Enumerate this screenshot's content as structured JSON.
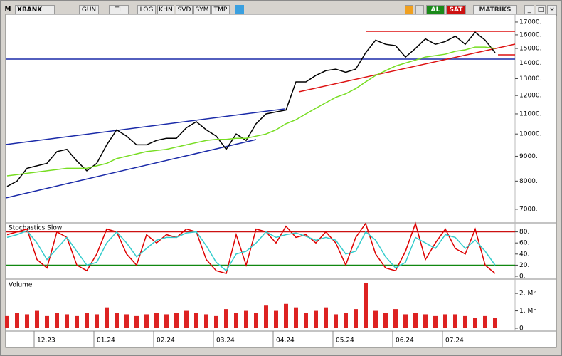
{
  "toolbar": {
    "logo": "M",
    "symbol": "XBANK",
    "buttons": [
      "GUN",
      "TL",
      "LOG",
      "KHN",
      "SVD",
      "SYM",
      "TMP"
    ],
    "buy": "AL",
    "sell": "SAT",
    "brand": "MATRIKS"
  },
  "chart_data": [
    {
      "type": "line",
      "log": true,
      "ylim": [
        6630,
        17760
      ],
      "yticks": [
        {
          "value": 7000,
          "label": "7000."
        },
        {
          "value": 8000,
          "label": "8000."
        },
        {
          "value": 9000,
          "label": "9000."
        },
        {
          "value": 10000,
          "label": "10000."
        },
        {
          "value": 11000,
          "label": "11000."
        },
        {
          "value": 12000,
          "label": "12000."
        },
        {
          "value": 13000,
          "label": "13000."
        },
        {
          "value": 14000,
          "label": "14000."
        },
        {
          "value": 15000,
          "label": "15000."
        },
        {
          "value": 16000,
          "label": "16000."
        },
        {
          "value": 17000,
          "label": "17000."
        }
      ],
      "series": [
        {
          "color": "#000000",
          "values": [
            7800,
            8000,
            8500,
            8600,
            8700,
            9200,
            9300,
            8800,
            8400,
            8700,
            9500,
            10200,
            9900,
            9500,
            9500,
            9700,
            9800,
            9800,
            10300,
            10600,
            10200,
            9900,
            9300,
            10000,
            9700,
            10500,
            11000,
            11100,
            11200,
            12800,
            12800,
            13200,
            13500,
            13600,
            13400,
            13600,
            14700,
            15600,
            15300,
            15200,
            14400,
            15000,
            15700,
            15300,
            15500,
            15900,
            15300,
            16200,
            15600,
            14700
          ]
        },
        {
          "color": "#77dd22",
          "values": [
            8200,
            8250,
            8300,
            8350,
            8400,
            8450,
            8500,
            8500,
            8500,
            8600,
            8700,
            8900,
            9000,
            9100,
            9200,
            9250,
            9300,
            9400,
            9500,
            9600,
            9700,
            9750,
            9750,
            9800,
            9800,
            9900,
            10000,
            10200,
            10500,
            10700,
            11000,
            11300,
            11600,
            11900,
            12100,
            12400,
            12800,
            13200,
            13500,
            13800,
            14000,
            14200,
            14400,
            14500,
            14600,
            14800,
            14900,
            15100,
            15100,
            15000
          ]
        }
      ]
    },
    {
      "type": "line",
      "title": "Stochastics Slow",
      "ylim": [
        0,
        100
      ],
      "yticks": [
        {
          "value": 0,
          "label": "0."
        },
        {
          "value": 20,
          "label": "20."
        },
        {
          "value": 40,
          "label": "40."
        },
        {
          "value": 60,
          "label": "60."
        },
        {
          "value": 80,
          "label": "80."
        }
      ],
      "series": [
        {
          "color": "#dd0000",
          "values": [
            75,
            80,
            85,
            30,
            15,
            80,
            70,
            20,
            10,
            40,
            85,
            80,
            40,
            20,
            75,
            60,
            75,
            70,
            85,
            80,
            30,
            10,
            5,
            75,
            20,
            85,
            80,
            60,
            90,
            70,
            75,
            60,
            80,
            60,
            20,
            70,
            95,
            40,
            15,
            10,
            45,
            95,
            30,
            60,
            85,
            50,
            40,
            85,
            20,
            5
          ]
        },
        {
          "color": "#33cccc",
          "values": [
            70,
            75,
            82,
            60,
            30,
            50,
            70,
            45,
            20,
            25,
            60,
            80,
            60,
            35,
            50,
            65,
            70,
            70,
            78,
            80,
            55,
            25,
            10,
            40,
            45,
            60,
            80,
            70,
            75,
            78,
            72,
            65,
            70,
            65,
            40,
            45,
            80,
            65,
            35,
            15,
            25,
            70,
            60,
            50,
            75,
            70,
            50,
            65,
            45,
            20
          ]
        }
      ]
    },
    {
      "type": "bar",
      "title": "Volume",
      "ylim": [
        0,
        2700000
      ],
      "color": "#dd2222",
      "yticks": [
        0,
        {
          "value": 1000000,
          "label": "1. Mr"
        },
        {
          "value": 2000000,
          "label": "2. Mr"
        }
      ],
      "categories": [
        null,
        null,
        null,
        "12.23",
        null,
        null,
        null,
        null,
        null,
        "01.24",
        null,
        null,
        null,
        null,
        null,
        "02.24",
        null,
        null,
        null,
        null,
        null,
        "03.24",
        null,
        null,
        null,
        null,
        null,
        "04.24",
        null,
        null,
        null,
        null,
        null,
        "05.24",
        null,
        null,
        null,
        null,
        null,
        "06.24",
        null,
        null,
        null,
        null,
        "07.24",
        null,
        null,
        null,
        null,
        null
      ],
      "values": [
        700000,
        900000,
        800000,
        1000000,
        700000,
        900000,
        800000,
        700000,
        900000,
        800000,
        1200000,
        900000,
        800000,
        700000,
        800000,
        900000,
        800000,
        900000,
        1000000,
        900000,
        800000,
        700000,
        1100000,
        900000,
        1000000,
        900000,
        1300000,
        1000000,
        1400000,
        1200000,
        900000,
        1000000,
        1200000,
        800000,
        900000,
        1100000,
        2600000,
        1000000,
        900000,
        1100000,
        800000,
        900000,
        800000,
        700000,
        800000,
        800000,
        700000,
        600000,
        700000,
        600000
      ]
    }
  ]
}
